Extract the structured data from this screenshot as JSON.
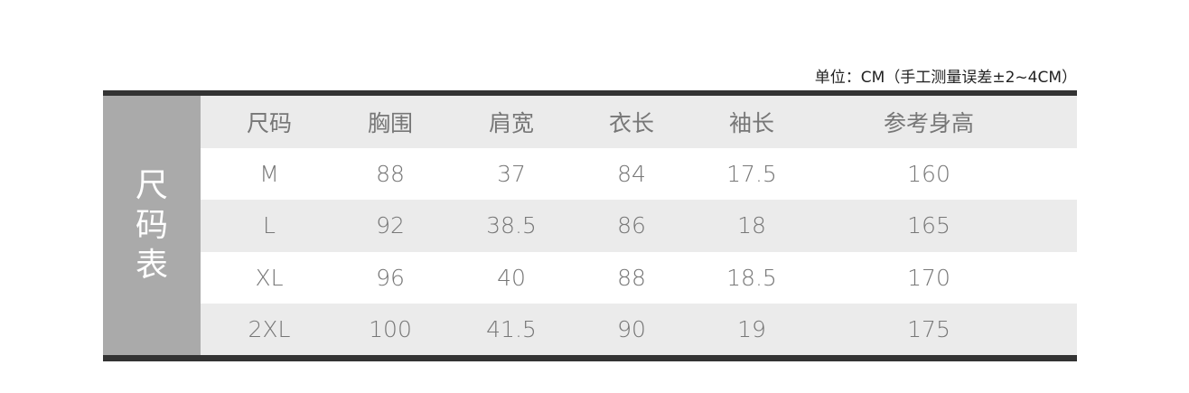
{
  "unit_note": "单位：CM（手工测量误差±2~4CM）",
  "side_title": [
    "尺",
    "码",
    "表"
  ],
  "columns": [
    "尺码",
    "胸围",
    "肩宽",
    "衣长",
    "袖长",
    "参考身高"
  ],
  "rows": [
    [
      "M",
      "88",
      "37",
      "84",
      "17.5",
      "160"
    ],
    [
      "L",
      "92",
      "38.5",
      "86",
      "18",
      "165"
    ],
    [
      "XL",
      "96",
      "40",
      "88",
      "18.5",
      "170"
    ],
    [
      "2XL",
      "100",
      "41.5",
      "90",
      "19",
      "175"
    ]
  ]
}
